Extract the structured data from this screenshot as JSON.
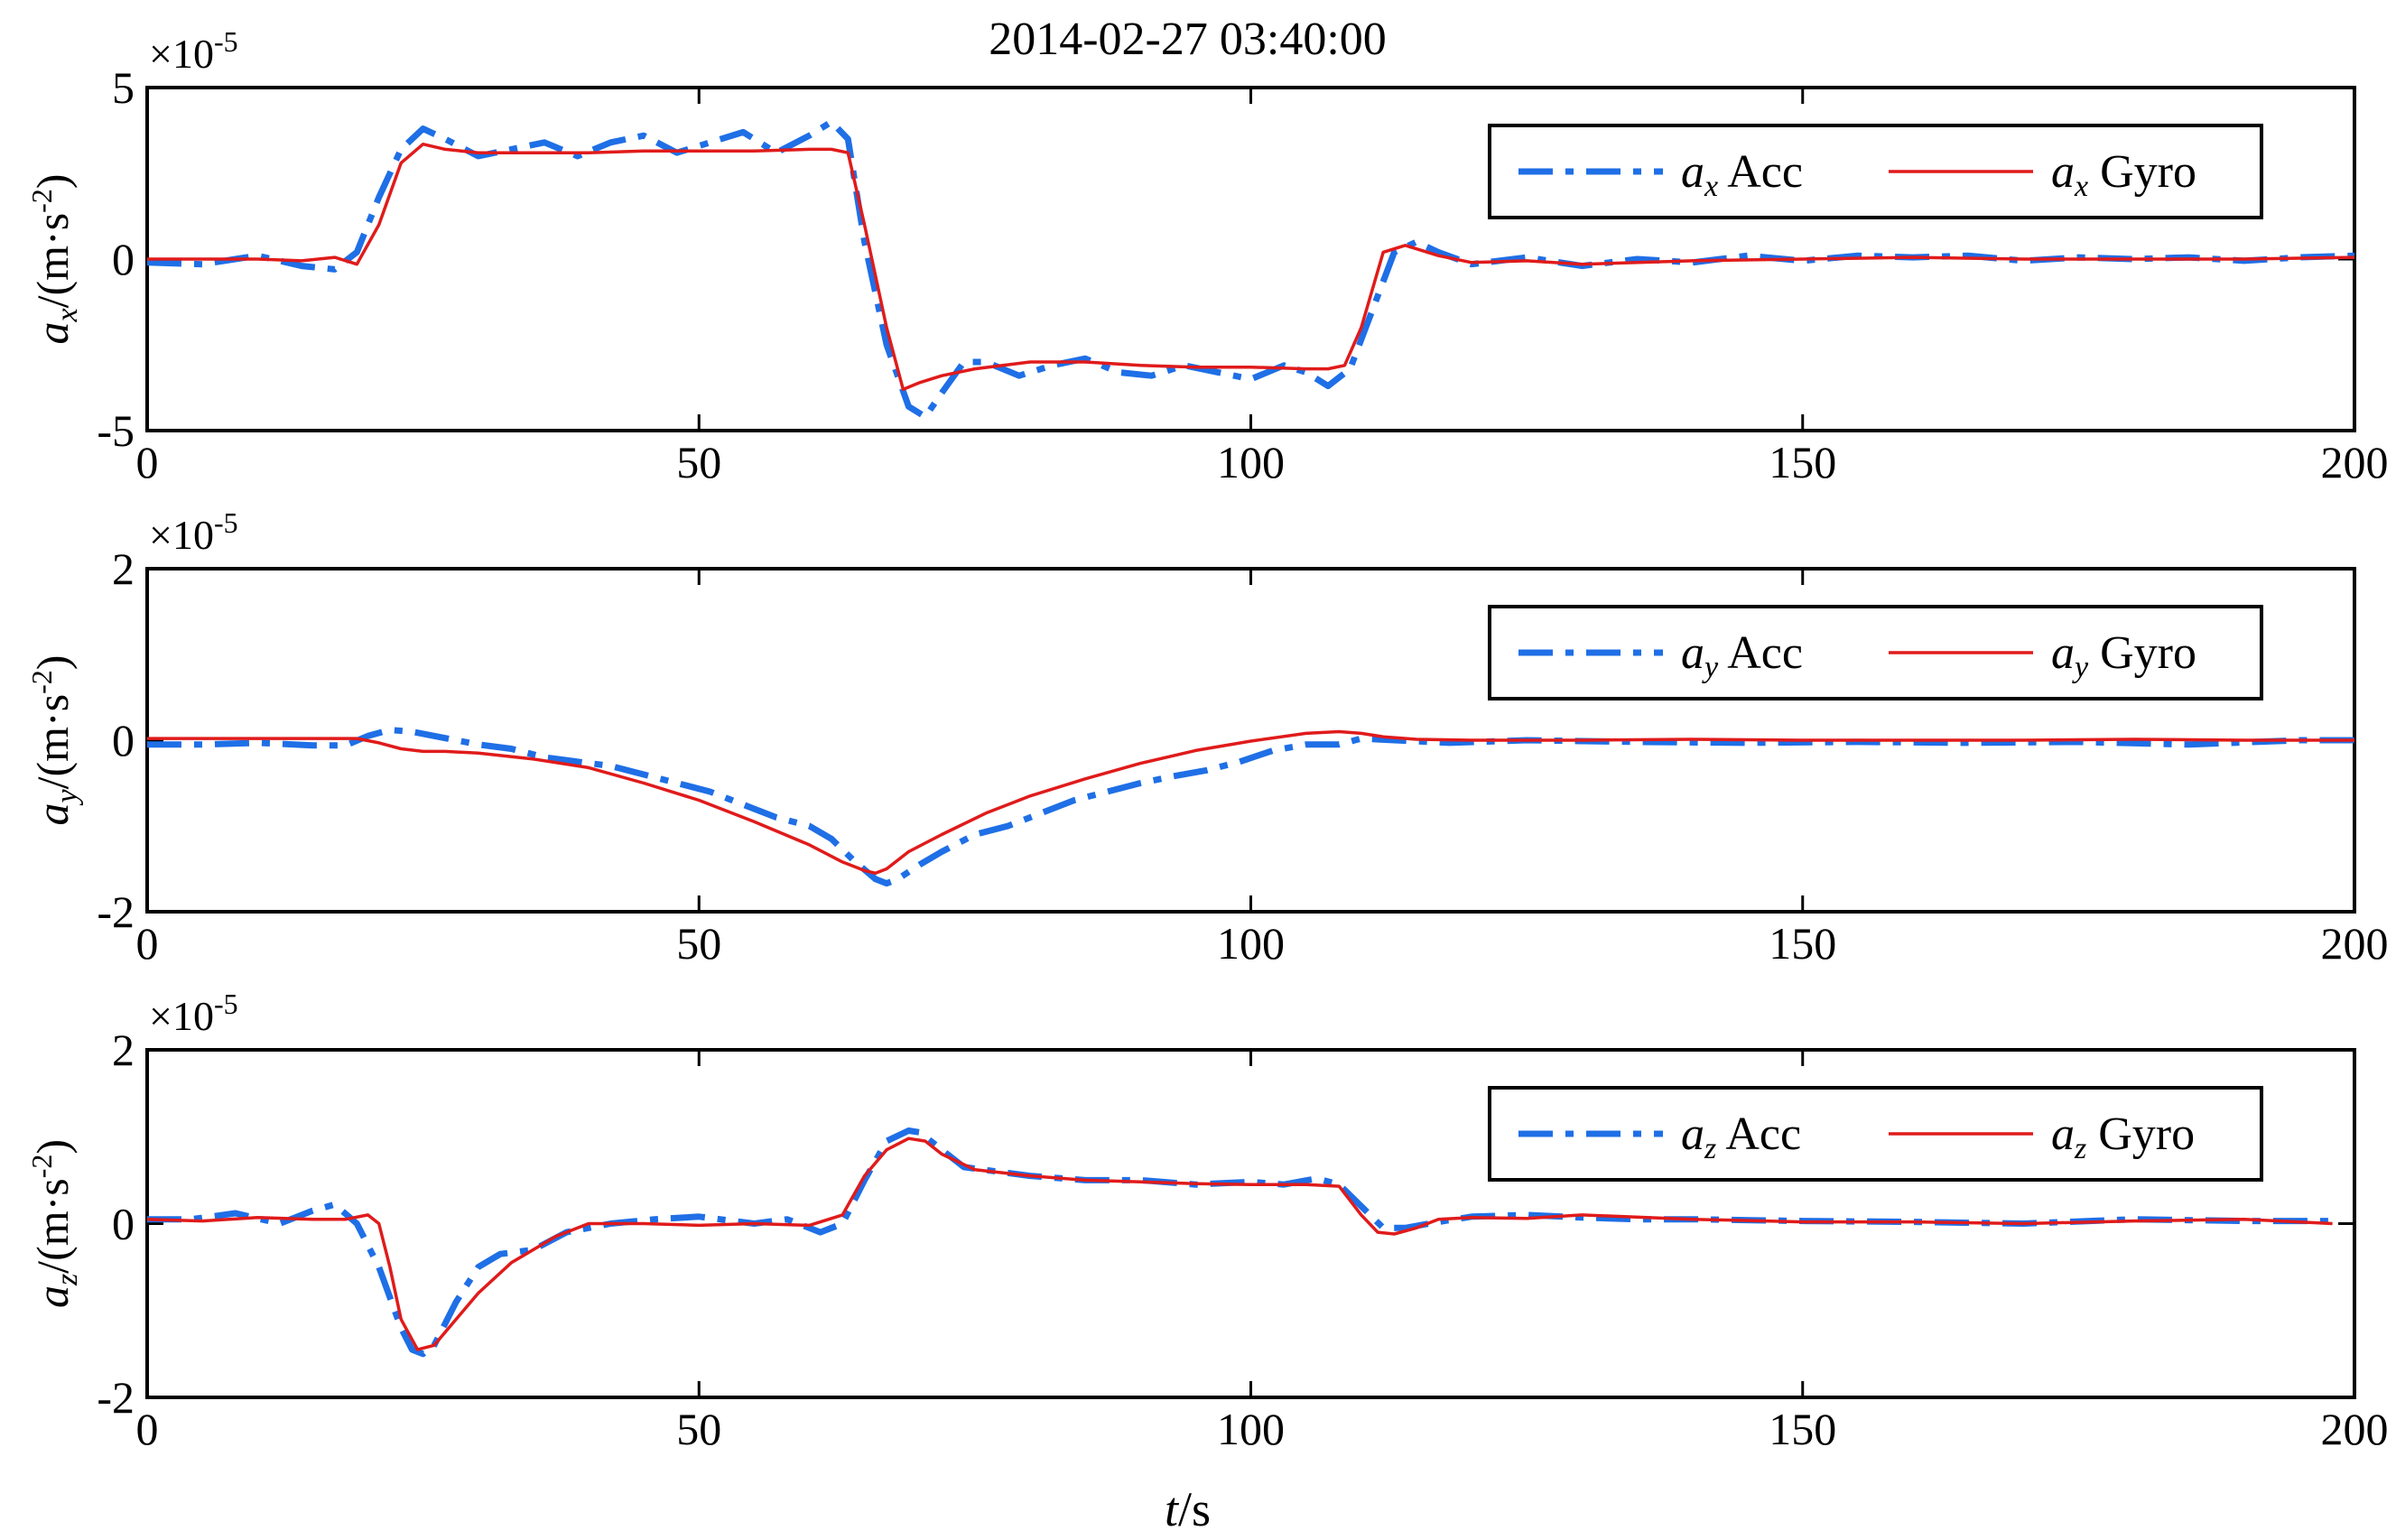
{
  "chart_data": [
    {
      "type": "line",
      "title": "2014-02-27 03:40:00",
      "exponent_base": "×10",
      "exponent_power": "-5",
      "ylabel": {
        "sym": "a",
        "sub": "x",
        "unit": "/(m·s",
        "unit_pow": "-2",
        "unit_close": ")"
      },
      "xlabel": null,
      "xlim": [
        0,
        200
      ],
      "ylim": [
        -5,
        5
      ],
      "xticks": [
        0,
        50,
        100,
        150,
        200
      ],
      "yticks": [
        -5,
        0,
        5
      ],
      "xtick_labels": [
        "0",
        "50",
        "100",
        "150",
        "200"
      ],
      "ytick_labels": [
        "-5",
        "0",
        "5"
      ],
      "legend": {
        "position": "top-right",
        "entries": [
          {
            "sym": "a",
            "sub": "x",
            "text": "Acc",
            "color": "#1f6fe6",
            "dash": "dashdot"
          },
          {
            "sym": "a",
            "sub": "x",
            "text": "Gyro",
            "color": "#e01b1b",
            "dash": "solid"
          }
        ]
      },
      "series": [
        {
          "color": "#1f6fe6",
          "x": [
            0,
            5,
            10,
            14,
            17,
            19,
            21,
            23,
            25,
            27,
            30,
            33,
            36,
            39,
            42,
            45,
            48,
            51,
            54,
            57,
            60,
            62,
            63.5,
            65,
            67,
            69,
            70.5,
            72,
            74,
            76,
            79,
            82,
            85,
            88,
            91,
            94,
            97,
            100,
            103,
            105,
            107,
            109,
            111,
            113,
            115,
            117,
            120,
            125,
            130,
            135,
            140,
            145,
            150,
            155,
            160,
            165,
            170,
            175,
            180,
            185,
            190,
            195,
            200
          ],
          "y": [
            -0.1,
            -0.15,
            0.1,
            -0.2,
            -0.3,
            0.2,
            1.8,
            3.2,
            3.8,
            3.5,
            3.0,
            3.2,
            3.4,
            3.0,
            3.4,
            3.6,
            3.1,
            3.4,
            3.7,
            3.1,
            3.6,
            4.0,
            3.5,
            0.5,
            -2.5,
            -4.3,
            -4.6,
            -3.9,
            -3.0,
            -3.0,
            -3.4,
            -3.1,
            -2.9,
            -3.3,
            -3.4,
            -3.1,
            -3.3,
            -3.5,
            -3.1,
            -3.3,
            -3.7,
            -3.2,
            -1.5,
            0.2,
            0.5,
            0.2,
            -0.15,
            0.05,
            -0.2,
            0.0,
            -0.1,
            0.1,
            -0.05,
            0.1,
            0.05,
            0.1,
            -0.05,
            0.05,
            0.0,
            0.05,
            -0.05,
            0.05,
            0.1
          ]
        },
        {
          "color": "#e01b1b",
          "x": [
            0,
            5,
            10,
            14,
            17,
            19,
            21,
            23,
            25,
            27,
            30,
            35,
            40,
            45,
            50,
            55,
            60,
            62,
            63.5,
            65,
            67,
            68.5,
            70,
            72,
            75,
            80,
            85,
            90,
            95,
            100,
            105,
            107,
            108.5,
            110,
            112,
            114,
            117,
            120,
            125,
            130,
            140,
            150,
            160,
            170,
            180,
            190,
            200
          ],
          "y": [
            0.0,
            0.0,
            0.0,
            -0.05,
            0.05,
            -0.15,
            1.0,
            2.8,
            3.35,
            3.2,
            3.1,
            3.1,
            3.1,
            3.15,
            3.15,
            3.15,
            3.2,
            3.2,
            3.1,
            1.0,
            -2.0,
            -3.8,
            -3.6,
            -3.4,
            -3.2,
            -3.0,
            -3.0,
            -3.1,
            -3.15,
            -3.15,
            -3.2,
            -3.2,
            -3.1,
            -2.0,
            0.2,
            0.4,
            0.1,
            -0.1,
            -0.05,
            -0.15,
            -0.05,
            0.0,
            0.05,
            0.0,
            0.0,
            0.0,
            0.05
          ]
        }
      ]
    },
    {
      "type": "line",
      "exponent_base": "×10",
      "exponent_power": "-5",
      "ylabel": {
        "sym": "a",
        "sub": "y",
        "unit": "/(m·s",
        "unit_pow": "-2",
        "unit_close": ")"
      },
      "xlabel": null,
      "xlim": [
        0,
        200
      ],
      "ylim": [
        -2,
        2
      ],
      "xticks": [
        0,
        50,
        100,
        150,
        200
      ],
      "yticks": [
        -2,
        0,
        2
      ],
      "xtick_labels": [
        "0",
        "50",
        "100",
        "150",
        "200"
      ],
      "ytick_labels": [
        "-2",
        "0",
        "2"
      ],
      "legend": {
        "position": "top-right",
        "entries": [
          {
            "sym": "a",
            "sub": "y",
            "text": "Acc",
            "color": "#1f6fe6",
            "dash": "dashdot"
          },
          {
            "sym": "a",
            "sub": "y",
            "text": "Gyro",
            "color": "#e01b1b",
            "dash": "solid"
          }
        ]
      },
      "series": [
        {
          "color": "#1f6fe6",
          "x": [
            0,
            5,
            10,
            15,
            18,
            20,
            22,
            24,
            26,
            28,
            30,
            33,
            36,
            39,
            42,
            45,
            48,
            51,
            54,
            57,
            60,
            62,
            64,
            66,
            67,
            68,
            70,
            72,
            75,
            78,
            81,
            84,
            87,
            90,
            93,
            96,
            99,
            102,
            105,
            108,
            110,
            113,
            118,
            125,
            135,
            145,
            155,
            165,
            175,
            185,
            195,
            200
          ],
          "y": [
            -0.05,
            -0.05,
            -0.03,
            -0.06,
            -0.06,
            0.05,
            0.12,
            0.1,
            0.05,
            0.0,
            -0.05,
            -0.1,
            -0.2,
            -0.25,
            -0.3,
            -0.4,
            -0.5,
            -0.6,
            -0.75,
            -0.9,
            -1.0,
            -1.15,
            -1.4,
            -1.62,
            -1.67,
            -1.62,
            -1.45,
            -1.3,
            -1.1,
            -1.0,
            -0.85,
            -0.7,
            -0.6,
            -0.5,
            -0.42,
            -0.35,
            -0.25,
            -0.12,
            -0.05,
            -0.05,
            0.02,
            0.0,
            -0.03,
            0.0,
            -0.02,
            -0.03,
            -0.02,
            -0.03,
            -0.02,
            -0.05,
            0.0,
            0.0
          ]
        },
        {
          "color": "#e01b1b",
          "x": [
            0,
            5,
            10,
            15,
            19,
            21,
            23,
            25,
            27,
            30,
            35,
            40,
            45,
            50,
            55,
            60,
            63,
            65,
            66,
            67,
            69,
            72,
            76,
            80,
            85,
            90,
            95,
            100,
            105,
            108,
            110,
            112,
            115,
            120,
            130,
            140,
            150,
            160,
            170,
            180,
            190,
            200
          ],
          "y": [
            0.02,
            0.02,
            0.02,
            0.02,
            0.02,
            -0.03,
            -0.1,
            -0.13,
            -0.13,
            -0.15,
            -0.22,
            -0.32,
            -0.5,
            -0.7,
            -0.95,
            -1.22,
            -1.42,
            -1.52,
            -1.55,
            -1.5,
            -1.3,
            -1.1,
            -0.85,
            -0.65,
            -0.45,
            -0.27,
            -0.12,
            -0.01,
            0.08,
            0.1,
            0.08,
            0.04,
            0.01,
            0.0,
            0.0,
            0.01,
            0.0,
            0.0,
            0.0,
            0.01,
            0.0,
            0.0
          ]
        }
      ]
    },
    {
      "type": "line",
      "exponent_base": "×10",
      "exponent_power": "-5",
      "ylabel": {
        "sym": "a",
        "sub": "z",
        "unit": "/(m·s",
        "unit_pow": "-2",
        "unit_close": ")"
      },
      "xlabel": {
        "sym": "t",
        "unit": "/s"
      },
      "xlim": [
        0,
        200
      ],
      "ylim": [
        -2,
        2
      ],
      "xticks": [
        0,
        50,
        100,
        150,
        200
      ],
      "yticks": [
        -2,
        0,
        2
      ],
      "xtick_labels": [
        "0",
        "50",
        "100",
        "150",
        "200"
      ],
      "ytick_labels": [
        "-2",
        "0",
        "2"
      ],
      "legend": {
        "position": "top-right",
        "entries": [
          {
            "sym": "a",
            "sub": "z",
            "text": "Acc",
            "color": "#1f6fe6",
            "dash": "dashdot"
          },
          {
            "sym": "a",
            "sub": "z",
            "text": "Gyro",
            "color": "#e01b1b",
            "dash": "solid"
          }
        ]
      },
      "series": [
        {
          "color": "#1f6fe6",
          "x": [
            0,
            4,
            8,
            12,
            15,
            17,
            19,
            21,
            23,
            24,
            25,
            26,
            28,
            30,
            32,
            35,
            38,
            42,
            46,
            50,
            55,
            58,
            61,
            63,
            65,
            67,
            69,
            70,
            72,
            74,
            77,
            80,
            85,
            90,
            95,
            100,
            103,
            106,
            108,
            110,
            112,
            114,
            117,
            120,
            125,
            130,
            135,
            140,
            150,
            160,
            170,
            180,
            190,
            198
          ],
          "y": [
            0.05,
            0.05,
            0.12,
            0.0,
            0.15,
            0.22,
            0.0,
            -0.5,
            -1.2,
            -1.45,
            -1.5,
            -1.4,
            -0.9,
            -0.5,
            -0.35,
            -0.3,
            -0.1,
            0.0,
            0.05,
            0.08,
            0.0,
            0.05,
            -0.1,
            0.0,
            0.5,
            0.95,
            1.07,
            1.05,
            0.85,
            0.65,
            0.6,
            0.55,
            0.5,
            0.5,
            0.45,
            0.48,
            0.45,
            0.52,
            0.45,
            0.2,
            -0.05,
            -0.05,
            0.02,
            0.08,
            0.1,
            0.07,
            0.05,
            0.05,
            0.03,
            0.02,
            0.0,
            0.05,
            0.03,
            0.03
          ]
        },
        {
          "color": "#e01b1b",
          "x": [
            0,
            5,
            10,
            15,
            18,
            20,
            21,
            22,
            23,
            24.5,
            26,
            28,
            30,
            33,
            37,
            40,
            45,
            50,
            55,
            60,
            63,
            65,
            67,
            69,
            70.5,
            72,
            75,
            80,
            85,
            90,
            95,
            100,
            105,
            108,
            110,
            111.5,
            113,
            115,
            117,
            120,
            125,
            130,
            140,
            150,
            160,
            170,
            180,
            190,
            198
          ],
          "y": [
            0.05,
            0.03,
            0.07,
            0.05,
            0.05,
            0.1,
            0.0,
            -0.5,
            -1.1,
            -1.45,
            -1.4,
            -1.1,
            -0.8,
            -0.45,
            -0.15,
            0.0,
            0.0,
            -0.02,
            0.0,
            -0.02,
            0.1,
            0.55,
            0.85,
            0.98,
            0.95,
            0.8,
            0.62,
            0.55,
            0.5,
            0.48,
            0.46,
            0.45,
            0.45,
            0.43,
            0.1,
            -0.1,
            -0.12,
            -0.05,
            0.05,
            0.07,
            0.06,
            0.1,
            0.05,
            0.02,
            0.02,
            0.0,
            0.03,
            0.05,
            0.0
          ]
        }
      ]
    }
  ]
}
